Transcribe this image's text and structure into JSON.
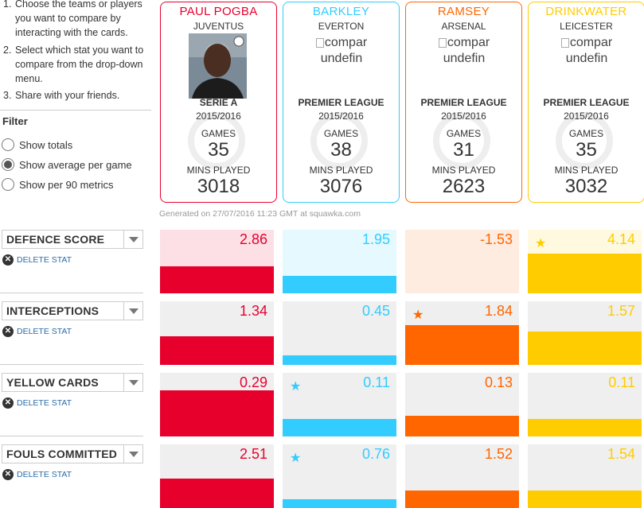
{
  "instructions": [
    {
      "num": "1.",
      "text": "Choose the teams or players you want to compare by interacting with the cards."
    },
    {
      "num": "2.",
      "text": "Select which stat you want to compare from the drop-down menu."
    },
    {
      "num": "3.",
      "text": "Share with your friends."
    }
  ],
  "filter": {
    "title": "Filter",
    "options": [
      {
        "label": "Show totals",
        "checked": false
      },
      {
        "label": "Show average per game",
        "checked": true
      },
      {
        "label": "Show per 90 metrics",
        "checked": false
      }
    ]
  },
  "players": [
    {
      "name": "PAUL POGBA",
      "team": "JUVENTUS",
      "league": "SERIE A",
      "season": "2015/2016",
      "games_label": "GAMES",
      "games": "35",
      "mins_label": "MINS PLAYED",
      "mins": "3018",
      "color": "#e8002d",
      "has_photo": true,
      "broken_text": ""
    },
    {
      "name": "BARKLEY",
      "team": "EVERTON",
      "league": "PREMIER LEAGUE",
      "season": "2015/2016",
      "games_label": "GAMES",
      "games": "38",
      "mins_label": "MINS PLAYED",
      "mins": "3076",
      "color": "#33ccff",
      "has_photo": false,
      "broken_text": "compar undefin"
    },
    {
      "name": "RAMSEY",
      "team": "ARSENAL",
      "league": "PREMIER LEAGUE",
      "season": "2015/2016",
      "games_label": "GAMES",
      "games": "31",
      "mins_label": "MINS PLAYED",
      "mins": "2623",
      "color": "#ff6600",
      "has_photo": false,
      "broken_text": "compar undefin"
    },
    {
      "name": "DRINKWATER",
      "team": "LEICESTER",
      "league": "PREMIER LEAGUE",
      "season": "2015/2016",
      "games_label": "GAMES",
      "games": "35",
      "mins_label": "MINS PLAYED",
      "mins": "3032",
      "color": "#ffcc00",
      "has_photo": false,
      "broken_text": "compar undefin"
    }
  ],
  "generated_text": "Generated on 27/07/2016 11:23 GMT at squawka.com",
  "delete_label": "DELETE STAT",
  "stats": [
    {
      "label": "DEFENCE SCORE",
      "values": [
        "2.86",
        "1.95",
        "-1.53",
        "4.14"
      ],
      "fill": [
        0.42,
        0.28,
        0.0,
        0.62
      ],
      "star": 3,
      "tint": true
    },
    {
      "label": "INTERCEPTIONS",
      "values": [
        "1.34",
        "0.45",
        "1.84",
        "1.57"
      ],
      "fill": [
        0.45,
        0.15,
        0.63,
        0.53
      ],
      "star": 2,
      "tint": false
    },
    {
      "label": "YELLOW CARDS",
      "values": [
        "0.29",
        "0.11",
        "0.13",
        "0.11"
      ],
      "fill": [
        0.72,
        0.27,
        0.32,
        0.27
      ],
      "star": 1,
      "tint": false
    },
    {
      "label": "FOULS COMMITTED",
      "values": [
        "2.51",
        "0.76",
        "1.52",
        "1.54"
      ],
      "fill": [
        0.46,
        0.14,
        0.28,
        0.28
      ],
      "star": 1,
      "tint": false
    }
  ]
}
